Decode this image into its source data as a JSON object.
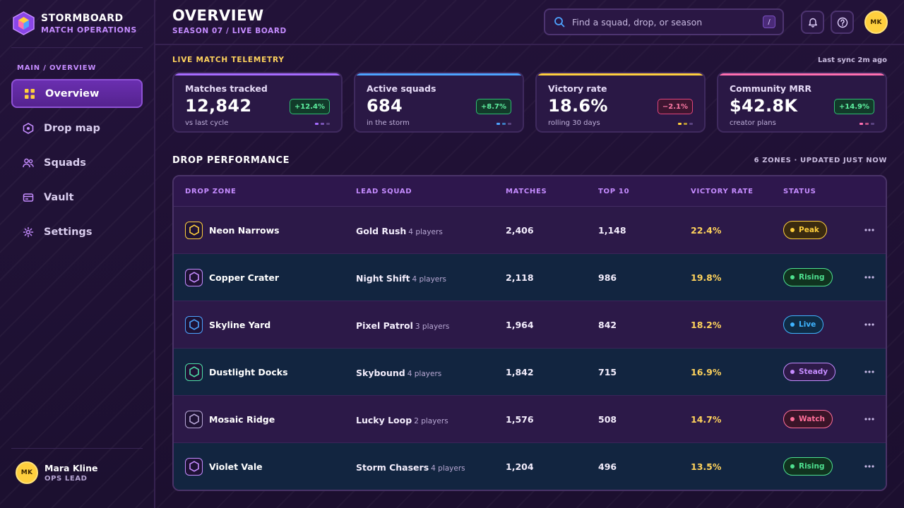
{
  "brand": {
    "title": "STORMBOARD",
    "subtitle": "MATCH OPERATIONS"
  },
  "sidebar": {
    "section_label": "MAIN / OVERVIEW",
    "items": [
      {
        "label": "Overview",
        "icon": "grid-icon",
        "active": true
      },
      {
        "label": "Drop map",
        "icon": "hexagon-icon"
      },
      {
        "label": "Squads",
        "icon": "users-icon"
      },
      {
        "label": "Vault",
        "icon": "card-icon"
      },
      {
        "label": "Settings",
        "icon": "gear-icon"
      }
    ],
    "user": {
      "initials": "MK",
      "name": "Mara Kline",
      "role": "OPS LEAD"
    }
  },
  "header": {
    "title": "OVERVIEW",
    "subtitle": "SEASON 07 / LIVE BOARD",
    "search_placeholder": "Find a squad, drop, or season",
    "search_shortcut": "/",
    "avatar_initials": "MK"
  },
  "telemetry": {
    "label": "LIVE MATCH TELEMETRY",
    "sync": "Last sync 2m ago",
    "cards": [
      {
        "label": "Matches tracked",
        "value": "12,842",
        "delta": "+12.4%",
        "trend": "up",
        "note": "vs last cycle",
        "accent": "#a66bff"
      },
      {
        "label": "Active squads",
        "value": "684",
        "delta": "+8.7%",
        "trend": "up",
        "note": "in the storm",
        "accent": "#4da3ff"
      },
      {
        "label": "Victory rate",
        "value": "18.6%",
        "delta": "−2.1%",
        "trend": "down",
        "note": "rolling 30 days",
        "accent": "#ffcf3d"
      },
      {
        "label": "Community MRR",
        "value": "$42.8K",
        "delta": "+14.9%",
        "trend": "up",
        "note": "creator plans",
        "accent": "#ff6fb0"
      }
    ]
  },
  "drops": {
    "title": "DROP PERFORMANCE",
    "meta": "6 ZONES · UPDATED JUST NOW",
    "columns": [
      "DROP ZONE",
      "LEAD SQUAD",
      "MATCHES",
      "TOP 10",
      "VICTORY RATE",
      "STATUS"
    ],
    "rows": [
      {
        "zone": "Neon Narrows",
        "color": "#ffcf3d",
        "squad": "Gold Rush",
        "players": "4 players",
        "matches": "2,406",
        "top10": "1,148",
        "rate": "22.4%",
        "status": "Peak",
        "status_color": "#ffcf3d",
        "status_bg": "#3a2a10"
      },
      {
        "zone": "Copper Crater",
        "color": "#c58cff",
        "squad": "Night Shift",
        "players": "4 players",
        "matches": "2,118",
        "top10": "986",
        "rate": "19.8%",
        "status": "Rising",
        "status_color": "#4ee08f",
        "status_bg": "#10331f"
      },
      {
        "zone": "Skyline Yard",
        "color": "#4da3ff",
        "squad": "Pixel Patrol",
        "players": "3 players",
        "matches": "1,964",
        "top10": "842",
        "rate": "18.2%",
        "status": "Live",
        "status_color": "#3fb4ff",
        "status_bg": "#0f2b45"
      },
      {
        "zone": "Dustlight Docks",
        "color": "#4ee0a8",
        "squad": "Skybound",
        "players": "4 players",
        "matches": "1,842",
        "top10": "715",
        "rate": "16.9%",
        "status": "Steady",
        "status_color": "#c58cff",
        "status_bg": "#2d1a48"
      },
      {
        "zone": "Mosaic Ridge",
        "color": "#b9a8d8",
        "squad": "Lucky Loop",
        "players": "2 players",
        "matches": "1,576",
        "top10": "508",
        "rate": "14.7%",
        "status": "Watch",
        "status_color": "#ff6f9a",
        "status_bg": "#3a1428"
      },
      {
        "zone": "Violet Vale",
        "color": "#c58cff",
        "squad": "Storm Chasers",
        "players": "4 players",
        "matches": "1,204",
        "top10": "496",
        "rate": "13.5%",
        "status": "Rising",
        "status_color": "#4ee08f",
        "status_bg": "#10331f"
      }
    ]
  }
}
